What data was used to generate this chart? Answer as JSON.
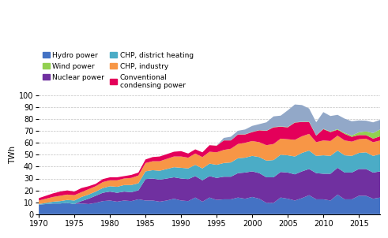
{
  "years": [
    1970,
    1971,
    1972,
    1973,
    1974,
    1975,
    1976,
    1977,
    1978,
    1979,
    1980,
    1981,
    1982,
    1983,
    1984,
    1985,
    1986,
    1987,
    1988,
    1989,
    1990,
    1991,
    1992,
    1993,
    1994,
    1995,
    1996,
    1997,
    1998,
    1999,
    2000,
    2001,
    2002,
    2003,
    2004,
    2005,
    2006,
    2007,
    2008,
    2009,
    2010,
    2011,
    2012,
    2013,
    2014,
    2015,
    2016,
    2017,
    2018
  ],
  "hydro": [
    8.0,
    8.5,
    9.0,
    9.0,
    9.5,
    8.5,
    9.0,
    8.5,
    9.5,
    11.0,
    11.5,
    10.5,
    11.5,
    11.0,
    12.5,
    11.5,
    11.5,
    10.5,
    11.5,
    13.0,
    11.5,
    11.0,
    14.0,
    10.5,
    14.0,
    12.0,
    12.5,
    12.5,
    14.0,
    13.0,
    14.5,
    13.0,
    9.5,
    9.5,
    14.0,
    13.0,
    11.5,
    13.5,
    16.0,
    12.5,
    12.5,
    11.5,
    16.5,
    12.5,
    12.5,
    15.5,
    15.5,
    13.0,
    14.0
  ],
  "nuclear": [
    0.0,
    0.0,
    0.0,
    0.0,
    0.0,
    0.0,
    2.0,
    4.5,
    6.0,
    7.0,
    7.5,
    7.5,
    7.5,
    7.5,
    7.5,
    18.0,
    18.5,
    18.5,
    18.5,
    18.0,
    18.5,
    18.5,
    18.0,
    18.0,
    18.0,
    18.5,
    19.0,
    19.0,
    20.5,
    22.0,
    21.5,
    21.5,
    21.5,
    21.5,
    21.5,
    22.0,
    22.0,
    22.5,
    22.0,
    22.0,
    21.5,
    22.5,
    22.5,
    22.5,
    22.5,
    22.5,
    22.5,
    22.0,
    22.0
  ],
  "chp_district": [
    0.5,
    1.0,
    1.5,
    2.0,
    2.5,
    3.0,
    3.5,
    3.5,
    3.5,
    4.0,
    4.5,
    5.0,
    5.5,
    6.0,
    6.0,
    6.5,
    7.0,
    7.5,
    8.0,
    8.5,
    9.0,
    9.0,
    9.5,
    10.0,
    10.5,
    11.0,
    11.5,
    12.0,
    12.5,
    12.5,
    13.0,
    13.5,
    14.0,
    14.5,
    14.5,
    14.5,
    15.0,
    15.5,
    15.5,
    14.5,
    15.5,
    15.0,
    14.5,
    14.5,
    14.0,
    13.5,
    14.0,
    14.0,
    14.5
  ],
  "chp_industry": [
    3.0,
    3.5,
    4.0,
    4.5,
    4.5,
    4.5,
    4.0,
    4.5,
    4.5,
    5.0,
    5.0,
    5.5,
    5.5,
    6.0,
    6.5,
    7.0,
    7.5,
    8.0,
    8.5,
    9.0,
    9.5,
    9.0,
    9.5,
    9.5,
    10.0,
    10.5,
    11.0,
    11.5,
    12.0,
    12.5,
    12.5,
    12.5,
    13.0,
    13.5,
    13.5,
    13.5,
    14.0,
    14.0,
    14.0,
    11.5,
    12.5,
    12.5,
    12.5,
    12.5,
    12.0,
    11.5,
    11.5,
    11.5,
    11.5
  ],
  "conventional": [
    2.0,
    2.5,
    3.0,
    3.5,
    3.5,
    3.0,
    3.5,
    2.5,
    2.0,
    2.5,
    2.5,
    2.5,
    2.0,
    2.5,
    2.5,
    3.0,
    3.5,
    4.0,
    4.0,
    4.0,
    4.5,
    3.5,
    3.5,
    4.0,
    5.5,
    5.5,
    8.0,
    7.0,
    8.0,
    7.0,
    7.5,
    10.0,
    12.0,
    14.0,
    10.0,
    10.0,
    14.5,
    12.0,
    10.0,
    5.5,
    9.5,
    7.5,
    5.0,
    5.5,
    4.0,
    3.5,
    3.0,
    3.0,
    3.5
  ],
  "wind": [
    0,
    0,
    0,
    0,
    0,
    0,
    0,
    0,
    0,
    0,
    0,
    0,
    0,
    0,
    0,
    0,
    0,
    0,
    0,
    0,
    0,
    0,
    0,
    0,
    0,
    0.1,
    0.1,
    0.1,
    0.1,
    0.2,
    0.2,
    0.2,
    0.2,
    0.2,
    0.3,
    0.3,
    0.2,
    0.2,
    0.3,
    0.3,
    0.3,
    0.5,
    0.5,
    0.8,
    1.1,
    2.3,
    3.1,
    4.7,
    5.8
  ],
  "net_import": [
    0,
    0,
    0,
    0,
    0,
    0,
    0,
    0,
    0,
    0,
    0,
    0,
    0,
    0,
    0,
    0,
    0,
    0,
    0,
    0,
    0,
    0,
    0,
    0,
    0,
    0,
    2.0,
    3.0,
    3.0,
    4.0,
    5.0,
    5.0,
    7.0,
    9.0,
    9.0,
    14.0,
    15.0,
    14.0,
    11.0,
    11.0,
    14.0,
    13.0,
    12.0,
    12.0,
    12.0,
    10.0,
    9.0,
    9.0,
    8.0
  ],
  "color_hydro": "#4472c4",
  "color_wind": "#92d050",
  "color_nuclear": "#7030a0",
  "color_chp_district": "#4bacc6",
  "color_chp_industry": "#f79646",
  "color_conventional": "#e4005a",
  "color_import": "#92a8c8",
  "ylabel": "TWh",
  "ylim": [
    0,
    100
  ],
  "yticks": [
    0,
    10,
    20,
    30,
    40,
    50,
    60,
    70,
    80,
    90,
    100
  ],
  "xticks": [
    1970,
    1975,
    1980,
    1985,
    1990,
    1995,
    2000,
    2005,
    2010,
    2015
  ],
  "legend_labels": [
    "Hydro power",
    "Wind power",
    "Nuclear power",
    "CHP, district heating",
    "CHP, industry",
    "Conventional\ncondensing power"
  ],
  "grid_color": "#c0c0c0",
  "bg_color": "#ffffff"
}
